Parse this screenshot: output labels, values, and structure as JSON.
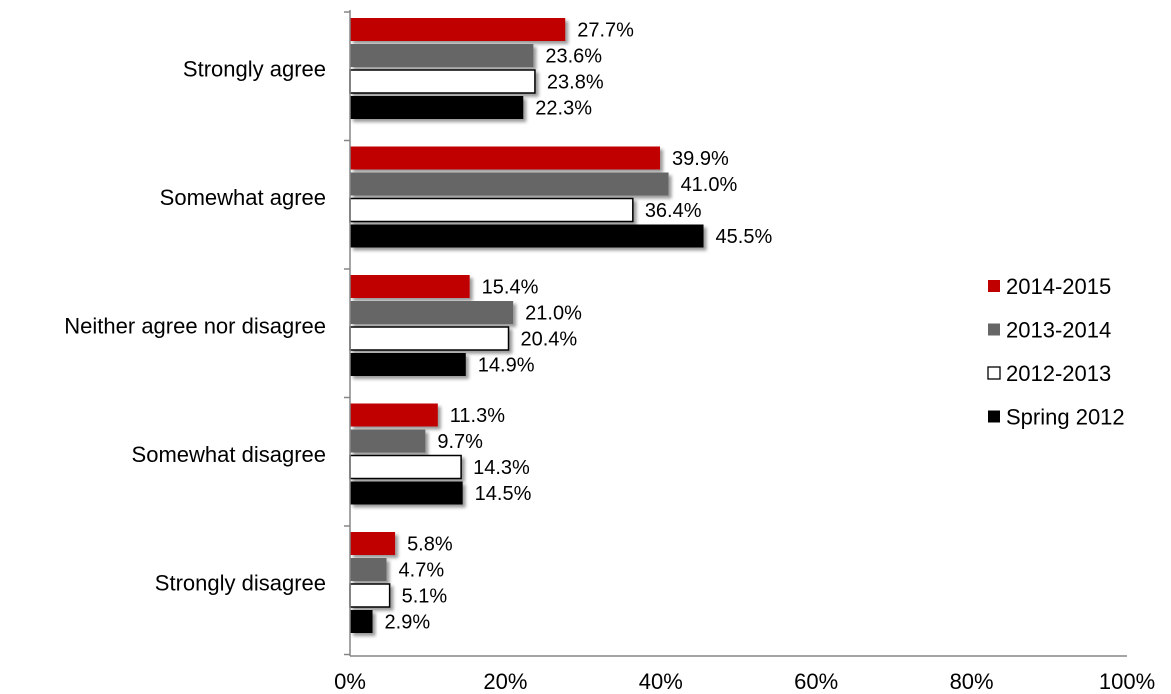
{
  "chart_data": {
    "type": "bar",
    "orientation": "horizontal",
    "categories": [
      "Strongly agree",
      "Somewhat agree",
      "Neither agree nor disagree",
      "Somewhat disagree",
      "Strongly disagree"
    ],
    "series": [
      {
        "name": "2014-2015",
        "color": "#C00000",
        "values": [
          27.7,
          39.9,
          15.4,
          11.3,
          5.8
        ],
        "labels": [
          "27.7%",
          "39.9%",
          "15.4%",
          "11.3%",
          "5.8%"
        ]
      },
      {
        "name": "2013-2014",
        "color": "#666666",
        "values": [
          23.6,
          41.0,
          21.0,
          9.7,
          4.7
        ],
        "labels": [
          "23.6%",
          "41.0%",
          "21.0%",
          "9.7%",
          "4.7%"
        ]
      },
      {
        "name": "2012-2013",
        "color": "#FFFFFF",
        "values": [
          23.8,
          36.4,
          20.4,
          14.3,
          5.1
        ],
        "labels": [
          "23.8%",
          "36.4%",
          "20.4%",
          "14.3%",
          "5.1%"
        ]
      },
      {
        "name": "Spring 2012",
        "color": "#000000",
        "values": [
          22.3,
          45.5,
          14.9,
          14.5,
          2.9
        ],
        "labels": [
          "22.3%",
          "45.5%",
          "14.9%",
          "14.5%",
          "2.9%"
        ]
      }
    ],
    "x_ticks": [
      "0%",
      "20%",
      "40%",
      "60%",
      "80%",
      "100%"
    ],
    "xlim": [
      0,
      100
    ],
    "grid": false,
    "legend_position": "right"
  }
}
